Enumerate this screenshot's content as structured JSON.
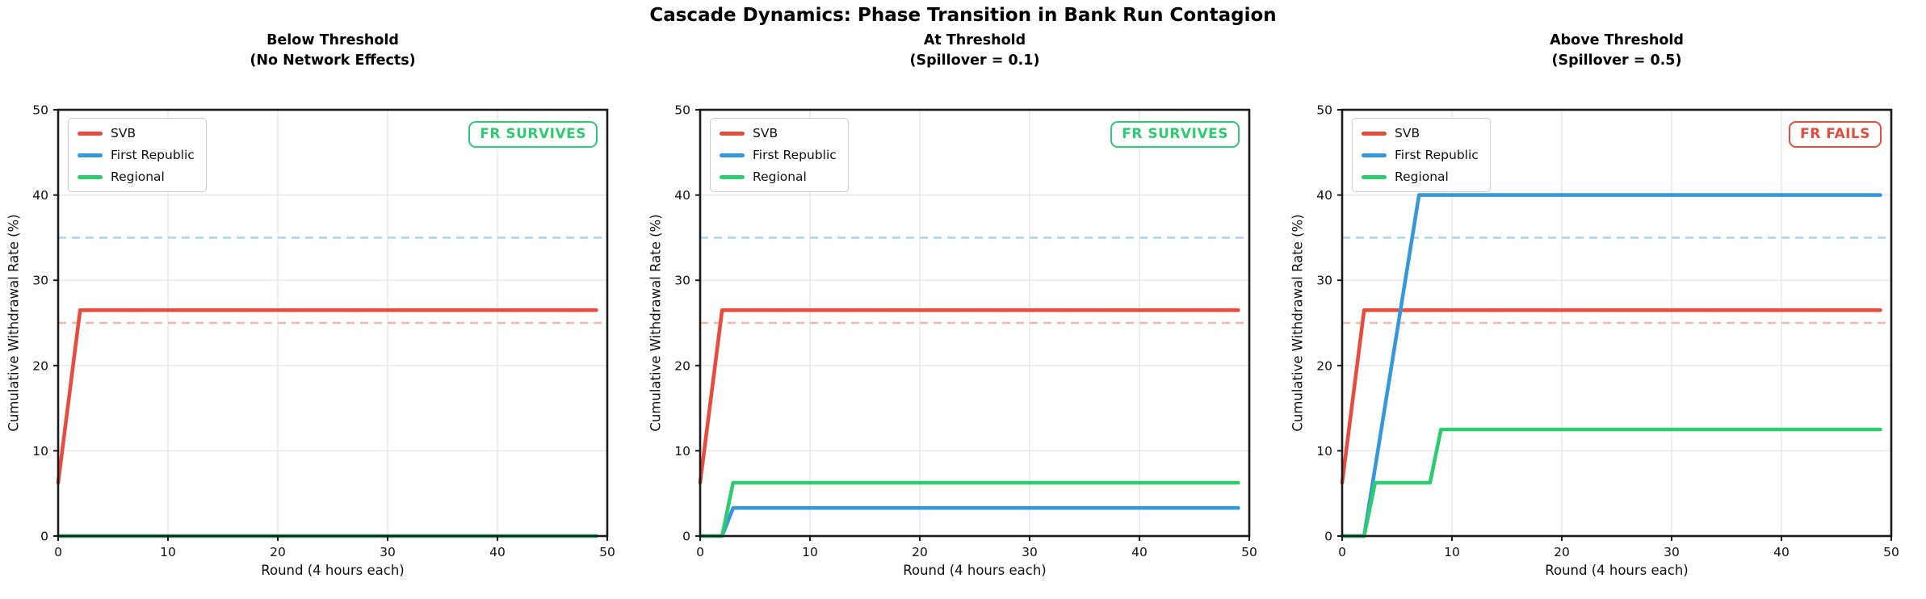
{
  "figure_title": "Cascade Dynamics: Phase Transition in Bank Run Contagion",
  "chart_data": [
    {
      "type": "line",
      "title": "Below Threshold\n(No Network Effects)",
      "xlabel": "Round (4 hours each)",
      "ylabel": "Cumulative Withdrawal Rate (%)",
      "xlim": [
        0,
        50
      ],
      "ylim": [
        0,
        50
      ],
      "xticks": [
        0,
        10,
        20,
        30,
        40,
        50
      ],
      "yticks": [
        0,
        10,
        20,
        30,
        40,
        50
      ],
      "grid": true,
      "legend_position": "upper-left",
      "series": [
        {
          "name": "SVB",
          "color": "#e74c3c",
          "points": [
            [
              0,
              6.25
            ],
            [
              2,
              26.5
            ],
            [
              49,
              26.5
            ]
          ]
        },
        {
          "name": "First Republic",
          "color": "#3498db",
          "points": [
            [
              0,
              0
            ],
            [
              49,
              0
            ]
          ]
        },
        {
          "name": "Regional",
          "color": "#2ecc71",
          "points": [
            [
              0,
              0
            ],
            [
              49,
              0
            ]
          ]
        }
      ],
      "reference_lines": [
        {
          "y": 35,
          "color": "#aed6f1",
          "style": "dashed"
        },
        {
          "y": 25,
          "color": "#f5b7b1",
          "style": "dashed"
        }
      ],
      "annotation": {
        "text": "FR SURVIVES",
        "color": "#2ecc71"
      }
    },
    {
      "type": "line",
      "title": "At Threshold\n(Spillover = 0.1)",
      "xlabel": "Round (4 hours each)",
      "ylabel": "Cumulative Withdrawal Rate (%)",
      "xlim": [
        0,
        50
      ],
      "ylim": [
        0,
        50
      ],
      "xticks": [
        0,
        10,
        20,
        30,
        40,
        50
      ],
      "yticks": [
        0,
        10,
        20,
        30,
        40,
        50
      ],
      "grid": true,
      "legend_position": "upper-left",
      "series": [
        {
          "name": "SVB",
          "color": "#e74c3c",
          "points": [
            [
              0,
              6.25
            ],
            [
              2,
              26.5
            ],
            [
              49,
              26.5
            ]
          ]
        },
        {
          "name": "First Republic",
          "color": "#3498db",
          "points": [
            [
              0,
              0
            ],
            [
              2,
              0
            ],
            [
              3,
              3.3
            ],
            [
              49,
              3.3
            ]
          ]
        },
        {
          "name": "Regional",
          "color": "#2ecc71",
          "points": [
            [
              0,
              0
            ],
            [
              2,
              0
            ],
            [
              3,
              6.25
            ],
            [
              49,
              6.25
            ]
          ]
        }
      ],
      "reference_lines": [
        {
          "y": 35,
          "color": "#aed6f1",
          "style": "dashed"
        },
        {
          "y": 25,
          "color": "#f5b7b1",
          "style": "dashed"
        }
      ],
      "annotation": {
        "text": "FR SURVIVES",
        "color": "#2ecc71"
      }
    },
    {
      "type": "line",
      "title": "Above Threshold\n(Spillover = 0.5)",
      "xlabel": "Round (4 hours each)",
      "ylabel": "Cumulative Withdrawal Rate (%)",
      "xlim": [
        0,
        50
      ],
      "ylim": [
        0,
        50
      ],
      "xticks": [
        0,
        10,
        20,
        30,
        40,
        50
      ],
      "yticks": [
        0,
        10,
        20,
        30,
        40,
        50
      ],
      "grid": true,
      "legend_position": "upper-left",
      "series": [
        {
          "name": "SVB",
          "color": "#e74c3c",
          "points": [
            [
              0,
              6.25
            ],
            [
              2,
              26.5
            ],
            [
              49,
              26.5
            ]
          ]
        },
        {
          "name": "First Republic",
          "color": "#3498db",
          "points": [
            [
              0,
              0
            ],
            [
              2,
              0
            ],
            [
              7,
              40
            ],
            [
              49,
              40
            ]
          ]
        },
        {
          "name": "Regional",
          "color": "#2ecc71",
          "points": [
            [
              0,
              0
            ],
            [
              2,
              0
            ],
            [
              3,
              6.25
            ],
            [
              8,
              6.25
            ],
            [
              9,
              12.5
            ],
            [
              49,
              12.5
            ]
          ]
        }
      ],
      "reference_lines": [
        {
          "y": 35,
          "color": "#aed6f1",
          "style": "dashed"
        },
        {
          "y": 25,
          "color": "#f5b7b1",
          "style": "dashed"
        }
      ],
      "annotation": {
        "text": "FR FAILS",
        "color": "#e74c3c"
      }
    }
  ]
}
